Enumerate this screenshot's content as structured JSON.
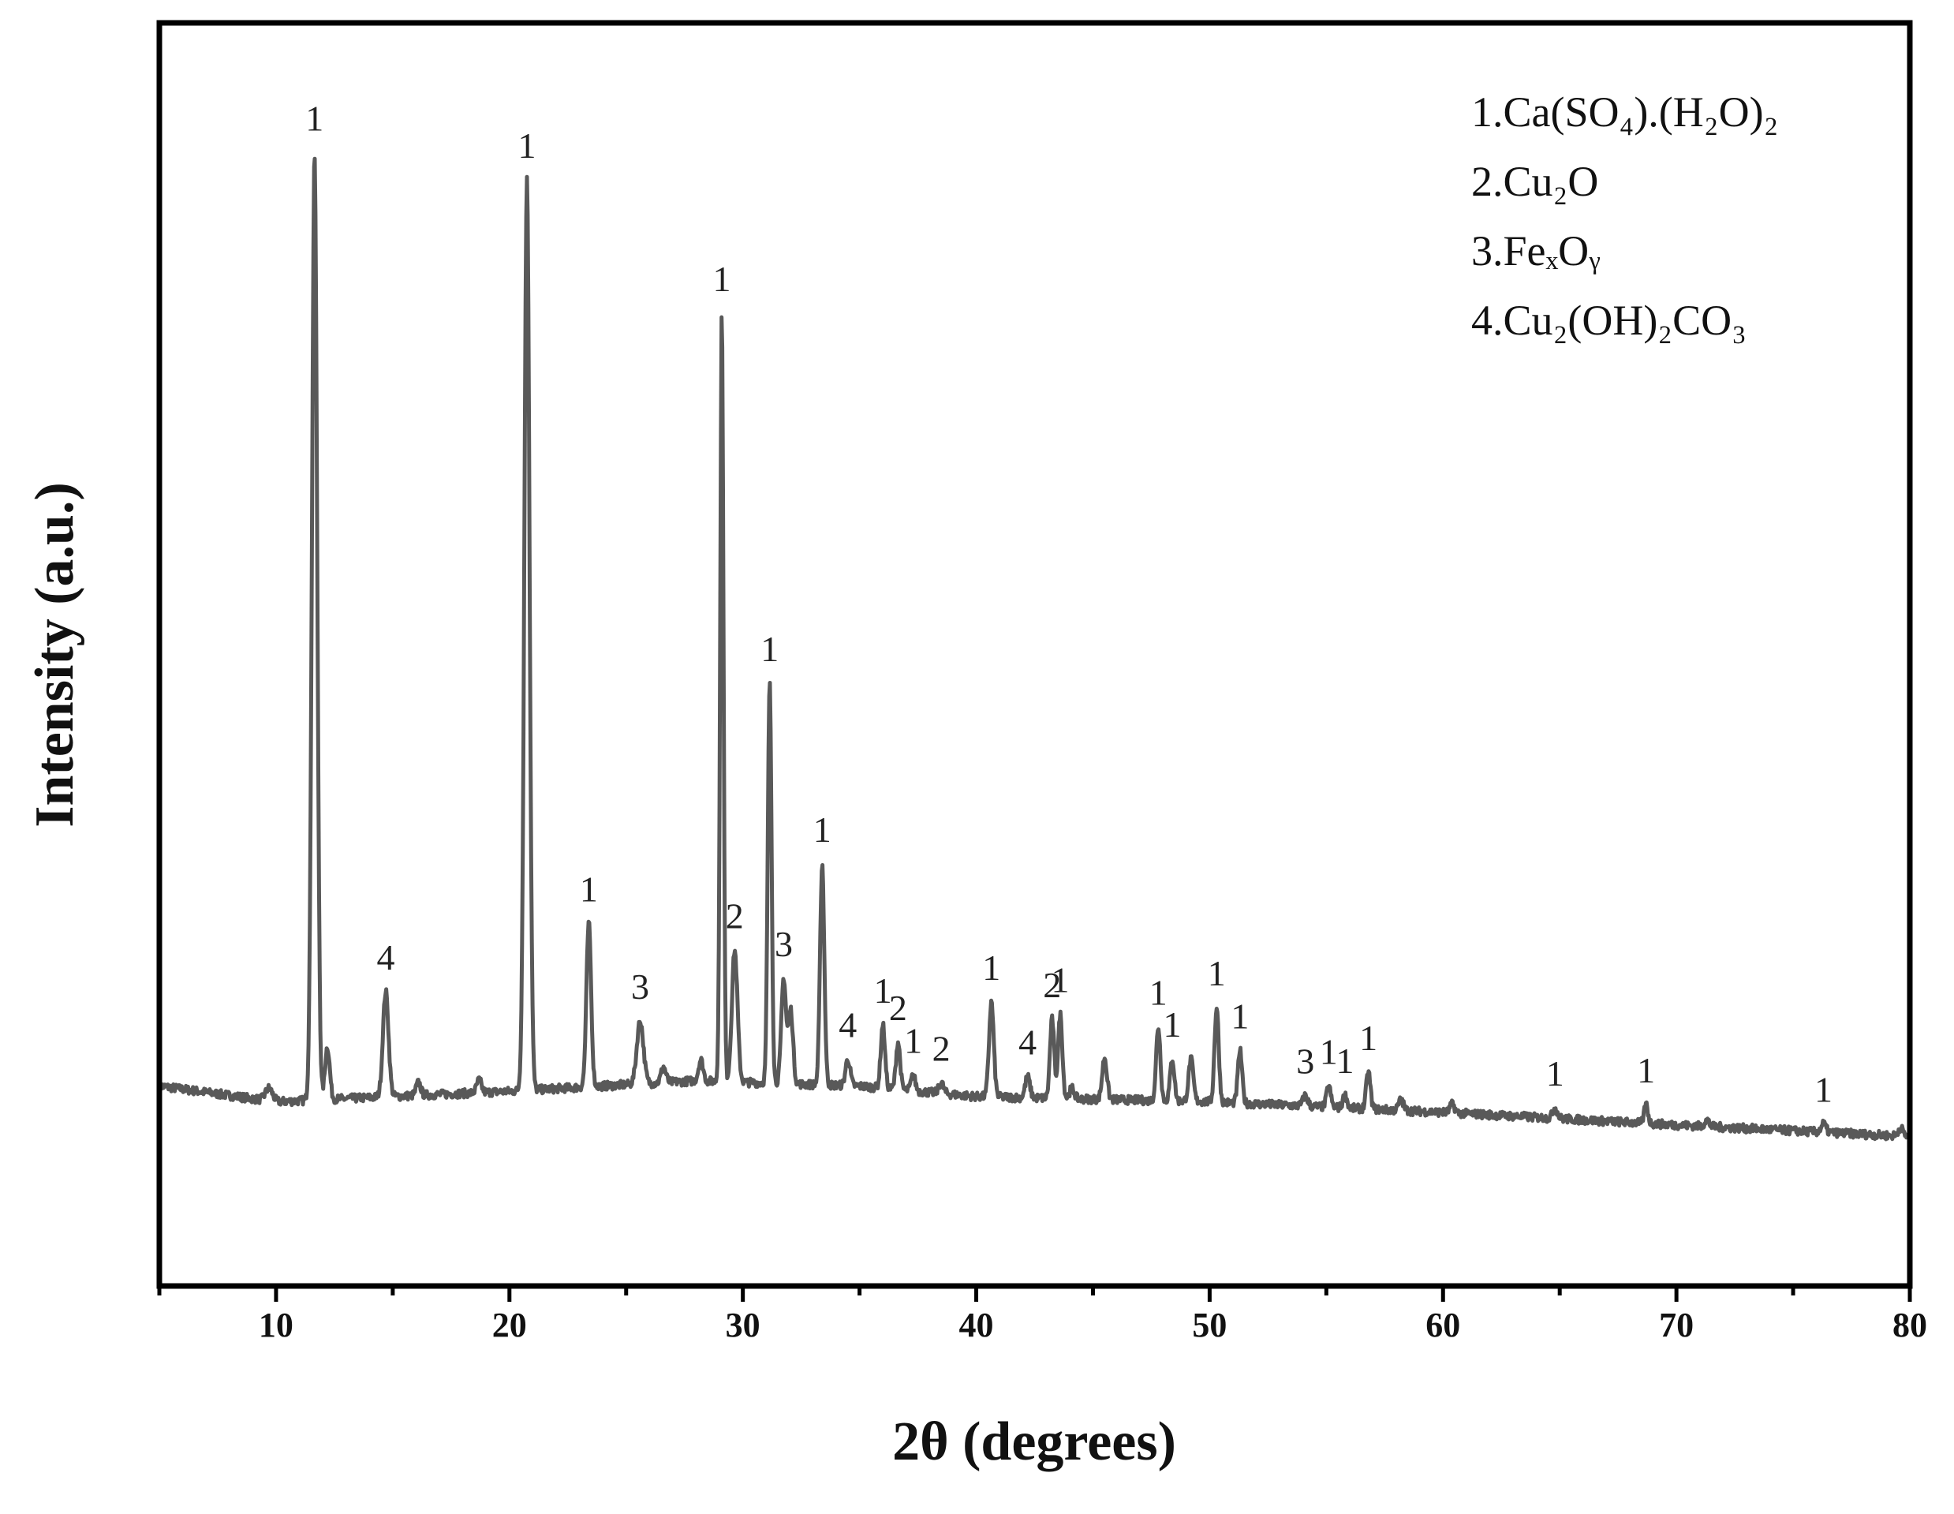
{
  "chart_data": {
    "type": "line",
    "xlabel": "2θ (degrees)",
    "ylabel": "Intensity (a.u.)",
    "xlim": [
      5,
      80
    ],
    "ylim": [
      -0.15,
      1.05
    ],
    "xticks": [
      10,
      20,
      30,
      40,
      50,
      60,
      70,
      80
    ],
    "y_tick_labels": false,
    "grid": false,
    "legend_position": "top-right",
    "line_color": "#595959",
    "baseline": [
      [
        5,
        0.04
      ],
      [
        10,
        0.025
      ],
      [
        20,
        0.035
      ],
      [
        28,
        0.045
      ],
      [
        35,
        0.04
      ],
      [
        40,
        0.03
      ],
      [
        50,
        0.025
      ],
      [
        60,
        0.015
      ],
      [
        70,
        0.003
      ],
      [
        80,
        -0.008
      ]
    ],
    "peaks": [
      {
        "x": 9.7,
        "height": 0.012,
        "width": 0.15,
        "label": ""
      },
      {
        "x": 11.65,
        "height": 0.9,
        "width": 0.11,
        "label": "1"
      },
      {
        "x": 12.2,
        "height": 0.05,
        "width": 0.1,
        "label": ""
      },
      {
        "x": 14.7,
        "height": 0.1,
        "width": 0.12,
        "label": "4"
      },
      {
        "x": 16.1,
        "height": 0.012,
        "width": 0.1,
        "label": ""
      },
      {
        "x": 18.7,
        "height": 0.012,
        "width": 0.1,
        "label": ""
      },
      {
        "x": 20.75,
        "height": 0.865,
        "width": 0.11,
        "label": "1"
      },
      {
        "x": 23.4,
        "height": 0.155,
        "width": 0.1,
        "label": "1"
      },
      {
        "x": 25.6,
        "height": 0.06,
        "width": 0.14,
        "label": "3"
      },
      {
        "x": 26.6,
        "height": 0.015,
        "width": 0.1,
        "label": ""
      },
      {
        "x": 28.2,
        "height": 0.02,
        "width": 0.1,
        "label": ""
      },
      {
        "x": 29.1,
        "height": 0.73,
        "width": 0.07,
        "label": "1"
      },
      {
        "x": 29.65,
        "height": 0.125,
        "width": 0.12,
        "label": "2"
      },
      {
        "x": 31.15,
        "height": 0.38,
        "width": 0.08,
        "label": "1"
      },
      {
        "x": 31.75,
        "height": 0.1,
        "width": 0.1,
        "label": "3"
      },
      {
        "x": 32.05,
        "height": 0.07,
        "width": 0.1,
        "label": ""
      },
      {
        "x": 33.4,
        "height": 0.21,
        "width": 0.09,
        "label": "1"
      },
      {
        "x": 34.5,
        "height": 0.025,
        "width": 0.1,
        "label": "4"
      },
      {
        "x": 36.0,
        "height": 0.06,
        "width": 0.09,
        "label": "1"
      },
      {
        "x": 36.65,
        "height": 0.045,
        "width": 0.09,
        "label": "2"
      },
      {
        "x": 37.3,
        "height": 0.015,
        "width": 0.09,
        "label": "1"
      },
      {
        "x": 38.5,
        "height": 0.01,
        "width": 0.1,
        "label": "2"
      },
      {
        "x": 40.65,
        "height": 0.09,
        "width": 0.1,
        "label": "1"
      },
      {
        "x": 42.2,
        "height": 0.02,
        "width": 0.1,
        "label": "4"
      },
      {
        "x": 43.25,
        "height": 0.075,
        "width": 0.09,
        "label": "2"
      },
      {
        "x": 43.6,
        "height": 0.08,
        "width": 0.09,
        "label": "1"
      },
      {
        "x": 44.1,
        "height": 0.01,
        "width": 0.1,
        "label": ""
      },
      {
        "x": 45.5,
        "height": 0.04,
        "width": 0.1,
        "label": ""
      },
      {
        "x": 47.8,
        "height": 0.07,
        "width": 0.09,
        "label": "1"
      },
      {
        "x": 48.4,
        "height": 0.04,
        "width": 0.09,
        "label": "1"
      },
      {
        "x": 49.2,
        "height": 0.04,
        "width": 0.1,
        "label": ""
      },
      {
        "x": 50.3,
        "height": 0.09,
        "width": 0.09,
        "label": "1"
      },
      {
        "x": 51.3,
        "height": 0.05,
        "width": 0.09,
        "label": "1"
      },
      {
        "x": 54.1,
        "height": 0.01,
        "width": 0.1,
        "label": "3"
      },
      {
        "x": 55.1,
        "height": 0.02,
        "width": 0.09,
        "label": "1"
      },
      {
        "x": 55.8,
        "height": 0.012,
        "width": 0.09,
        "label": "1"
      },
      {
        "x": 56.8,
        "height": 0.035,
        "width": 0.09,
        "label": "1"
      },
      {
        "x": 58.2,
        "height": 0.01,
        "width": 0.1,
        "label": ""
      },
      {
        "x": 60.4,
        "height": 0.008,
        "width": 0.1,
        "label": ""
      },
      {
        "x": 64.8,
        "height": 0.01,
        "width": 0.1,
        "label": "1"
      },
      {
        "x": 68.7,
        "height": 0.018,
        "width": 0.08,
        "label": "1"
      },
      {
        "x": 71.3,
        "height": 0.006,
        "width": 0.1,
        "label": ""
      },
      {
        "x": 76.3,
        "height": 0.008,
        "width": 0.1,
        "label": "1"
      },
      {
        "x": 79.6,
        "height": 0.008,
        "width": 0.1,
        "label": ""
      }
    ],
    "legend": [
      {
        "text": "1.Ca(SO₄).(H₂O)₂"
      },
      {
        "text": "2.Cu₂O"
      },
      {
        "text": "3.FeₓOᵧ"
      },
      {
        "text": "4.Cu₂(OH)₂CO₃"
      }
    ]
  }
}
